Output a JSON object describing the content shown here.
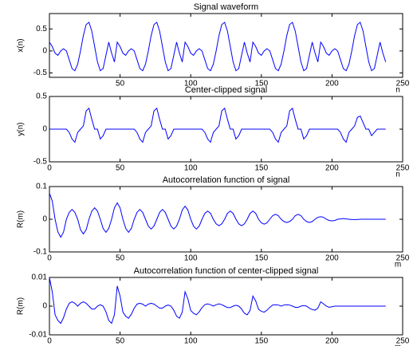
{
  "chart_data": [
    {
      "type": "line",
      "title": "Signal waveform",
      "xlabel": "n",
      "ylabel": "x(n)",
      "x": [
        0,
        2,
        4,
        6,
        8,
        10,
        12,
        14,
        16,
        18,
        20,
        22,
        24,
        26,
        28,
        30,
        32,
        34,
        36,
        38,
        40,
        42,
        44,
        46,
        48,
        50,
        52,
        54,
        56,
        58,
        60,
        62,
        64,
        66,
        68,
        70,
        72,
        74,
        76,
        78,
        80,
        82,
        84,
        86,
        88,
        90,
        92,
        94,
        96,
        98,
        100,
        102,
        104,
        106,
        108,
        110,
        112,
        114,
        116,
        118,
        120,
        122,
        124,
        126,
        128,
        130,
        132,
        134,
        136,
        138,
        140,
        142,
        144,
        146,
        148,
        150,
        152,
        154,
        156,
        158,
        160,
        162,
        164,
        166,
        168,
        170,
        172,
        174,
        176,
        178,
        180,
        182,
        184,
        186,
        188,
        190,
        192,
        194,
        196,
        198,
        200,
        202,
        204,
        206,
        208,
        210,
        212,
        214,
        216,
        218,
        220,
        222,
        224,
        226,
        228,
        230,
        232,
        234,
        236,
        238
      ],
      "values": [
        0.2,
        0.1,
        -0.05,
        -0.1,
        0,
        0.05,
        0,
        -0.2,
        -0.4,
        -0.45,
        -0.3,
        0,
        0.35,
        0.6,
        0.65,
        0.45,
        0.1,
        -0.25,
        -0.45,
        -0.4,
        -0.1,
        0.2,
        -0.05,
        -0.25,
        0.2,
        0.1,
        -0.05,
        -0.1,
        0,
        0.05,
        0,
        -0.2,
        -0.4,
        -0.45,
        -0.3,
        0,
        0.35,
        0.6,
        0.65,
        0.45,
        0.1,
        -0.25,
        -0.45,
        -0.4,
        -0.1,
        0.2,
        -0.05,
        -0.25,
        0.2,
        0.1,
        -0.05,
        -0.1,
        0,
        0.05,
        0,
        -0.2,
        -0.4,
        -0.45,
        -0.3,
        0,
        0.35,
        0.6,
        0.65,
        0.45,
        0.1,
        -0.25,
        -0.45,
        -0.4,
        -0.1,
        0.2,
        -0.05,
        -0.25,
        0.2,
        0.1,
        -0.05,
        -0.1,
        0,
        0.05,
        0,
        -0.2,
        -0.4,
        -0.45,
        -0.3,
        0,
        0.35,
        0.6,
        0.65,
        0.45,
        0.1,
        -0.25,
        -0.45,
        -0.4,
        -0.1,
        0.2,
        -0.05,
        -0.25,
        0.2,
        0.1,
        -0.05,
        -0.1,
        0,
        0.05,
        0,
        -0.2,
        -0.4,
        -0.45,
        -0.3,
        0,
        0.35,
        0.6,
        0.65,
        0.45,
        0.1,
        -0.25,
        -0.45,
        -0.4,
        -0.1,
        0.2,
        -0.05,
        -0.25
      ],
      "color": "#0000ff",
      "xlim": [
        0,
        250
      ],
      "xticks": [
        50,
        100,
        150,
        200,
        250
      ],
      "ylim": [
        -0.6,
        0.85
      ],
      "yticks": [
        -0.5,
        0,
        0.5
      ]
    },
    {
      "type": "line",
      "title": "Center-clipped signal",
      "xlabel": "n",
      "ylabel": "y(n)",
      "x": [
        0,
        2,
        4,
        6,
        8,
        10,
        12,
        14,
        16,
        18,
        20,
        22,
        24,
        26,
        28,
        30,
        32,
        34,
        36,
        38,
        40,
        42,
        44,
        46,
        48,
        50,
        52,
        54,
        56,
        58,
        60,
        62,
        64,
        66,
        68,
        70,
        72,
        74,
        76,
        78,
        80,
        82,
        84,
        86,
        88,
        90,
        92,
        94,
        96,
        98,
        100,
        102,
        104,
        106,
        108,
        110,
        112,
        114,
        116,
        118,
        120,
        122,
        124,
        126,
        128,
        130,
        132,
        134,
        136,
        138,
        140,
        142,
        144,
        146,
        148,
        150,
        152,
        154,
        156,
        158,
        160,
        162,
        164,
        166,
        168,
        170,
        172,
        174,
        176,
        178,
        180,
        182,
        184,
        186,
        188,
        190,
        192,
        194,
        196,
        198,
        200,
        202,
        204,
        206,
        208,
        210,
        212,
        214,
        216,
        218,
        220,
        222,
        224,
        226,
        228,
        230,
        232,
        234,
        236,
        238
      ],
      "values": [
        0,
        0,
        0,
        0,
        0,
        0,
        0,
        -0.05,
        -0.15,
        -0.2,
        -0.05,
        0,
        0.05,
        0.28,
        0.32,
        0.15,
        0,
        0,
        -0.15,
        -0.1,
        0,
        0,
        0,
        0,
        0,
        0,
        0,
        0,
        0,
        0,
        0,
        -0.05,
        -0.15,
        -0.2,
        -0.05,
        0,
        0.05,
        0.28,
        0.32,
        0.15,
        0,
        0,
        -0.15,
        -0.1,
        0,
        0,
        0,
        0,
        0,
        0,
        0,
        0,
        0,
        0,
        0,
        -0.05,
        -0.15,
        -0.2,
        -0.05,
        0,
        0.05,
        0.28,
        0.32,
        0.15,
        0,
        0,
        -0.15,
        -0.1,
        0,
        0,
        0,
        0,
        0,
        0,
        0,
        0,
        0,
        0,
        0,
        -0.05,
        -0.15,
        -0.2,
        -0.05,
        0,
        0.05,
        0.28,
        0.32,
        0.15,
        0,
        0,
        -0.15,
        -0.1,
        0,
        0,
        0,
        0,
        0,
        0,
        0,
        0,
        0,
        0,
        0,
        -0.05,
        -0.15,
        -0.2,
        -0.05,
        0,
        0.05,
        0.18,
        0.2,
        0.1,
        0,
        0,
        -0.1,
        -0.05,
        0,
        0,
        0,
        0
      ],
      "color": "#0000ff",
      "xlim": [
        0,
        250
      ],
      "xticks": [
        0,
        50,
        100,
        150,
        200,
        250
      ],
      "ylim": [
        -0.5,
        0.5
      ],
      "yticks": [
        -0.5,
        0,
        0.5
      ]
    },
    {
      "type": "line",
      "title": "Autocorrelation function of signal",
      "xlabel": "m",
      "ylabel": "R(m)",
      "x": [
        0,
        2,
        4,
        6,
        8,
        10,
        12,
        14,
        16,
        18,
        20,
        22,
        24,
        26,
        28,
        30,
        32,
        34,
        36,
        38,
        40,
        42,
        44,
        46,
        48,
        50,
        52,
        54,
        56,
        58,
        60,
        62,
        64,
        66,
        68,
        70,
        72,
        74,
        76,
        78,
        80,
        82,
        84,
        86,
        88,
        90,
        92,
        94,
        96,
        98,
        100,
        102,
        104,
        106,
        108,
        110,
        112,
        114,
        116,
        118,
        120,
        122,
        124,
        126,
        128,
        130,
        132,
        134,
        136,
        138,
        140,
        142,
        144,
        146,
        148,
        150,
        152,
        154,
        156,
        158,
        160,
        162,
        164,
        166,
        168,
        170,
        172,
        174,
        176,
        178,
        180,
        182,
        184,
        186,
        188,
        190,
        192,
        194,
        196,
        198,
        200,
        202,
        204,
        206,
        208,
        210,
        212,
        214,
        216,
        218,
        220,
        222,
        224,
        226,
        228,
        230,
        232,
        234,
        236,
        238
      ],
      "values": [
        0.08,
        0.056,
        0,
        -0.039,
        -0.055,
        -0.039,
        0,
        0.021,
        0.03,
        0.021,
        0,
        -0.032,
        -0.045,
        -0.032,
        0,
        0.025,
        0.035,
        0.025,
        0,
        -0.028,
        -0.04,
        -0.028,
        0,
        0.035,
        0.05,
        0.035,
        0,
        -0.028,
        -0.04,
        -0.028,
        0,
        0.021,
        0.03,
        0.021,
        0,
        -0.021,
        -0.03,
        -0.021,
        0,
        0.021,
        0.03,
        0.021,
        0,
        -0.021,
        -0.03,
        -0.021,
        0,
        0.028,
        0.04,
        0.028,
        0,
        -0.021,
        -0.03,
        -0.021,
        0,
        0.018,
        0.025,
        0.018,
        0,
        -0.014,
        -0.02,
        -0.014,
        0,
        0.018,
        0.025,
        0.018,
        0,
        -0.014,
        -0.02,
        -0.014,
        0,
        0.018,
        0.025,
        0.018,
        0,
        -0.011,
        -0.015,
        -0.011,
        0,
        0.011,
        0.015,
        0.011,
        0,
        -0.007,
        -0.01,
        -0.007,
        0,
        0.011,
        0.015,
        0.011,
        0,
        -0.007,
        -0.01,
        -0.007,
        0,
        0.006,
        0.008,
        0.006,
        0,
        -0.004,
        -0.005,
        -0.004,
        0,
        0.001,
        0.002,
        0.001,
        0,
        -0.001,
        -0.001,
        -0.001,
        0,
        0,
        0,
        0,
        0,
        0,
        0,
        0,
        0,
        0
      ],
      "color": "#0000ff",
      "xlim": [
        0,
        250
      ],
      "xticks": [
        0,
        50,
        100,
        150,
        200,
        250
      ],
      "ylim": [
        -0.1,
        0.1
      ],
      "yticks": [
        -0.1,
        0,
        0.1
      ]
    },
    {
      "type": "line",
      "title": "Autocorrelation function of center-clipped signal",
      "xlabel": "m",
      "ylabel": "R(m)",
      "x": [
        0,
        2,
        4,
        6,
        8,
        10,
        12,
        14,
        16,
        18,
        20,
        22,
        24,
        26,
        28,
        30,
        32,
        34,
        36,
        38,
        40,
        42,
        44,
        46,
        48,
        50,
        52,
        54,
        56,
        58,
        60,
        62,
        64,
        66,
        68,
        70,
        72,
        74,
        76,
        78,
        80,
        82,
        84,
        86,
        88,
        90,
        92,
        94,
        96,
        98,
        100,
        102,
        104,
        106,
        108,
        110,
        112,
        114,
        116,
        118,
        120,
        122,
        124,
        126,
        128,
        130,
        132,
        134,
        136,
        138,
        140,
        142,
        144,
        146,
        148,
        150,
        152,
        154,
        156,
        158,
        160,
        162,
        164,
        166,
        168,
        170,
        172,
        174,
        176,
        178,
        180,
        182,
        184,
        186,
        188,
        190,
        192,
        194,
        196,
        198,
        200,
        202,
        204,
        206,
        208,
        210,
        212,
        214,
        216,
        218,
        220,
        222,
        224,
        226,
        228,
        230,
        232,
        234,
        236,
        238
      ],
      "values": [
        0.01,
        0.005,
        -0.003,
        -0.005,
        -0.006,
        -0.004,
        -0.001,
        0.001,
        0.0015,
        0.001,
        0,
        0.001,
        0.0015,
        0.001,
        0,
        -0.001,
        -0.001,
        0,
        0.0005,
        0,
        -0.002,
        -0.005,
        -0.006,
        -0.003,
        0.007,
        0.0035,
        -0.0021,
        -0.0035,
        -0.0042,
        -0.0028,
        -0.0007,
        0.0007,
        0.001,
        0.0007,
        0,
        0.0007,
        0.001,
        0.0007,
        0,
        -0.0007,
        -0.0007,
        0,
        0.0004,
        0,
        -0.0014,
        -0.0035,
        -0.0042,
        -0.0021,
        0.005,
        0.0025,
        -0.0015,
        -0.0025,
        -0.003,
        -0.002,
        -0.0005,
        0.0005,
        0.0008,
        0.0005,
        0,
        0.0005,
        0.0008,
        0.0005,
        0,
        -0.0005,
        -0.0005,
        0,
        0.0003,
        0,
        -0.001,
        -0.0025,
        -0.003,
        -0.0015,
        0.0035,
        0.0018,
        -0.0011,
        -0.0018,
        -0.0021,
        -0.0014,
        -0.0004,
        0.0004,
        0.0005,
        0.0004,
        0,
        0.0004,
        0.0005,
        0.0004,
        0,
        -0.0004,
        -0.0004,
        0,
        0.0002,
        0,
        -0.0007,
        -0.0012,
        -0.0014,
        -0.0007,
        0.0015,
        0.0008,
        0,
        -0.0004,
        -0.0002,
        0,
        0,
        0,
        0,
        0,
        0,
        0,
        0,
        0,
        0,
        0,
        0,
        0,
        0,
        0,
        0,
        0,
        0,
        0
      ],
      "color": "#0000ff",
      "xlim": [
        0,
        250
      ],
      "xticks": [
        0,
        50,
        100,
        150,
        200,
        250
      ],
      "ylim": [
        -0.01,
        0.01
      ],
      "yticks": [
        -0.01,
        0,
        0.01
      ]
    }
  ]
}
